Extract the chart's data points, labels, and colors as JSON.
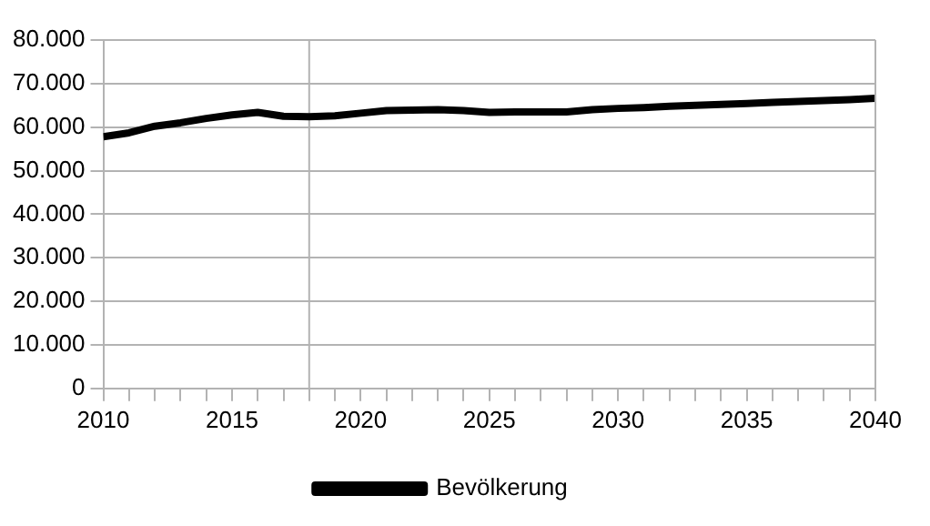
{
  "chart_data": {
    "type": "line",
    "x": [
      2010,
      2011,
      2012,
      2013,
      2014,
      2015,
      2016,
      2017,
      2018,
      2019,
      2020,
      2021,
      2022,
      2023,
      2024,
      2025,
      2026,
      2027,
      2028,
      2029,
      2030,
      2031,
      2032,
      2033,
      2034,
      2035,
      2036,
      2037,
      2038,
      2039,
      2040
    ],
    "series": [
      {
        "name": "Bevölkerung",
        "color": "#000000",
        "values": [
          57800,
          58700,
          60200,
          61000,
          62000,
          62800,
          63400,
          62500,
          62400,
          62600,
          63200,
          63800,
          63900,
          64000,
          63800,
          63400,
          63500,
          63500,
          63500,
          64000,
          64300,
          64500,
          64800,
          65000,
          65200,
          65400,
          65700,
          65900,
          66100,
          66300,
          66600
        ]
      }
    ],
    "xlim": [
      2010,
      2040
    ],
    "xticks": [
      2010,
      {
        "value": 2011,
        "label": null
      },
      {
        "value": 2012,
        "label": null
      },
      {
        "value": 2013,
        "label": null
      },
      {
        "value": 2014,
        "label": null
      },
      2015,
      {
        "value": 2016,
        "label": null
      },
      {
        "value": 2017,
        "label": null
      },
      {
        "value": 2018,
        "label": null
      },
      {
        "value": 2019,
        "label": null
      },
      2020,
      {
        "value": 2021,
        "label": null
      },
      {
        "value": 2022,
        "label": null
      },
      {
        "value": 2023,
        "label": null
      },
      {
        "value": 2024,
        "label": null
      },
      2025,
      {
        "value": 2026,
        "label": null
      },
      {
        "value": 2027,
        "label": null
      },
      {
        "value": 2028,
        "label": null
      },
      {
        "value": 2029,
        "label": null
      },
      2030,
      {
        "value": 2031,
        "label": null
      },
      {
        "value": 2032,
        "label": null
      },
      {
        "value": 2033,
        "label": null
      },
      {
        "value": 2034,
        "label": null
      },
      2035,
      {
        "value": 2036,
        "label": null
      },
      {
        "value": 2037,
        "label": null
      },
      {
        "value": 2038,
        "label": null
      },
      {
        "value": 2039,
        "label": null
      },
      2040
    ],
    "ylim": [
      0,
      80000
    ],
    "yticks": [
      {
        "value": 0,
        "label": "0"
      },
      {
        "value": 10000,
        "label": "10.000"
      },
      {
        "value": 20000,
        "label": "20.000"
      },
      {
        "value": 30000,
        "label": "30.000"
      },
      {
        "value": 40000,
        "label": "40.000"
      },
      {
        "value": 50000,
        "label": "50.000"
      },
      {
        "value": 60000,
        "label": "60.000"
      },
      {
        "value": 70000,
        "label": "70.000"
      },
      {
        "value": 80000,
        "label": "80.000"
      }
    ],
    "ref_lines": [
      {
        "axis": "x",
        "value": 2018,
        "color": "#b3b3b3"
      }
    ],
    "grid": "y",
    "legend": "bottom",
    "marker": "none",
    "line_style": "solid"
  }
}
